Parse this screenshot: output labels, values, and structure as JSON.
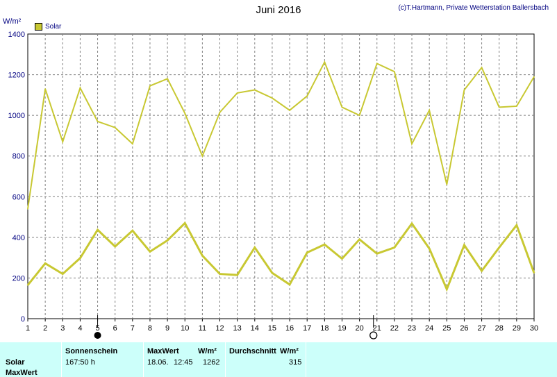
{
  "title": "Juni 2016",
  "credit": "(c)T.Hartmann, Private Wetterstation Ballersbach",
  "unit": "W/m²",
  "legend": {
    "label": "Solar",
    "color": "#c8c832"
  },
  "chart_data": {
    "type": "line",
    "x": [
      1,
      2,
      3,
      4,
      5,
      6,
      7,
      8,
      9,
      10,
      11,
      12,
      13,
      14,
      15,
      16,
      17,
      18,
      19,
      20,
      21,
      22,
      23,
      24,
      25,
      26,
      27,
      28,
      29,
      30
    ],
    "xlim": [
      1,
      30
    ],
    "ylim": [
      0,
      1400
    ],
    "yticks": [
      0,
      200,
      400,
      600,
      800,
      1000,
      1200,
      1400
    ],
    "grid": true,
    "series": [
      {
        "name": "MaxWert",
        "color": "#c8c832",
        "width": 2,
        "values": [
          540,
          1130,
          870,
          1135,
          970,
          940,
          860,
          1145,
          1180,
          1010,
          800,
          1015,
          1110,
          1125,
          1085,
          1025,
          1095,
          1262,
          1040,
          1000,
          1255,
          1215,
          860,
          1025,
          660,
          1125,
          1235,
          1040,
          1045,
          1190
        ]
      },
      {
        "name": "Solar",
        "color": "#c8c832",
        "width": 3,
        "values": [
          165,
          272,
          220,
          298,
          437,
          355,
          433,
          330,
          385,
          470,
          310,
          220,
          215,
          350,
          225,
          168,
          325,
          365,
          295,
          390,
          320,
          350,
          468,
          345,
          145,
          362,
          235,
          350,
          460,
          225
        ]
      }
    ],
    "moon_phases": [
      {
        "day": 5,
        "phase": "new",
        "symbol": "●"
      },
      {
        "day": 20.8,
        "phase": "full",
        "symbol": "○"
      }
    ]
  },
  "summary": {
    "headers": {
      "sunshine": "Sonnenschein",
      "max": "MaxWert",
      "max_unit": "W/m²",
      "avg": "Durchschnitt",
      "avg_unit": "W/m²"
    },
    "rows": [
      {
        "label": "Solar",
        "sunshine": "167:50 h",
        "max_date": "18.06.",
        "max_time": "12:45",
        "max_value": "1262",
        "avg": "315"
      },
      {
        "label": "MaxWert"
      }
    ]
  },
  "colors": {
    "panel_bg": "#ccfffa",
    "axis_text": "#000080",
    "grid": "#808080"
  }
}
